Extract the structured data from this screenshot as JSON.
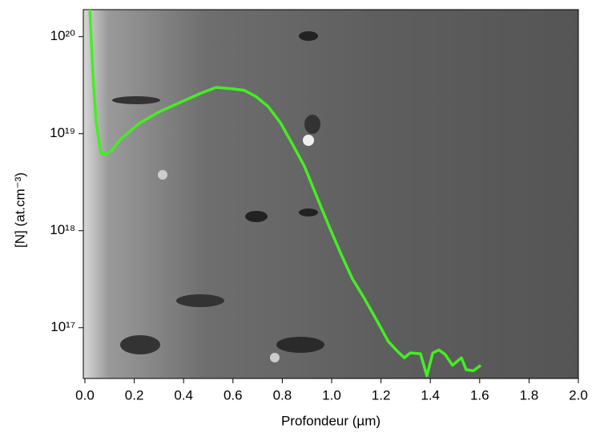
{
  "chart_data": {
    "type": "line",
    "x_label": "Profondeur (µm)",
    "y_label": "[N] (at.cm⁻³)",
    "log_y": true,
    "xlim": [
      0,
      2.0
    ],
    "xticks": [
      {
        "value": 0,
        "label": "0.0"
      },
      0.2,
      0.4,
      0.6,
      0.8,
      {
        "value": 1,
        "label": "1.0"
      },
      1.2,
      1.4,
      1.6,
      1.8,
      {
        "value": 2,
        "label": "2.0"
      }
    ],
    "ylim": [
      3e+16,
      1.9e+20
    ],
    "yticks": [
      {
        "value": 1e+17,
        "label": "10¹⁷"
      },
      {
        "value": 1e+18,
        "label": "10¹⁸"
      },
      {
        "value": 1e+19,
        "label": "10¹⁹"
      },
      {
        "value": 1e+20,
        "label": "10²⁰"
      }
    ],
    "series": [
      {
        "color": "#44ee22",
        "x": [
          0.02,
          0.032,
          0.045,
          0.065,
          0.084,
          0.11,
          0.143,
          0.175,
          0.224,
          0.305,
          0.386,
          0.468,
          0.532,
          0.597,
          0.646,
          0.695,
          0.743,
          0.792,
          0.84,
          0.89,
          0.938,
          0.987,
          1.036,
          1.084,
          1.133,
          1.182,
          1.23,
          1.27,
          1.295,
          1.318,
          1.36,
          1.386,
          1.41,
          1.435,
          1.46,
          1.49,
          1.526,
          1.545,
          1.575,
          1.604
        ],
        "values": [
          1.9e+20,
          4.2e+19,
          1.35e+19,
          6.3e+18,
          6.1e+18,
          6.8e+18,
          8.7e+18,
          1.02e+19,
          1.3e+19,
          1.7e+19,
          2.1e+19,
          2.6e+19,
          3e+19,
          2.9e+19,
          2.8e+19,
          2.4e+19,
          1.9e+19,
          1.3e+19,
          7.9e+18,
          4.6e+18,
          2.3e+18,
          1.15e+18,
          5.9e+17,
          3.2e+17,
          2e+17,
          1.2e+17,
          7.2e+16,
          5.6e+16,
          4.9e+16,
          5.5e+16,
          5.4e+16,
          3.2e+16,
          5.5e+16,
          5.9e+16,
          5.3e+16,
          4.1e+16,
          4.9e+16,
          3.7e+16,
          3.6e+16,
          4.1e+16
        ]
      }
    ]
  }
}
